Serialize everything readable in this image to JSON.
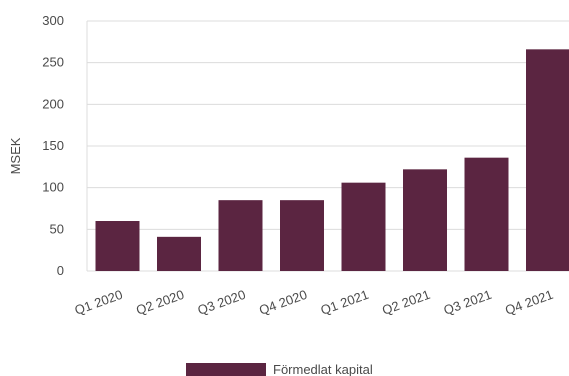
{
  "chart_data": {
    "type": "bar",
    "title": "",
    "xlabel": "",
    "ylabel": "MSEK",
    "ylim": [
      0,
      300
    ],
    "yticks": [
      0,
      50,
      100,
      150,
      200,
      250,
      300
    ],
    "grid": true,
    "legend_position": "bottom",
    "categories": [
      "Q1 2020",
      "Q2 2020",
      "Q3 2020",
      "Q4 2020",
      "Q1 2021",
      "Q2 2021",
      "Q3 2021",
      "Q4 2021"
    ],
    "series": [
      {
        "name": "Förmedlat kapital",
        "color": "#5b2541",
        "values": [
          60,
          41,
          85,
          85,
          106,
          122,
          136,
          266
        ]
      }
    ]
  }
}
